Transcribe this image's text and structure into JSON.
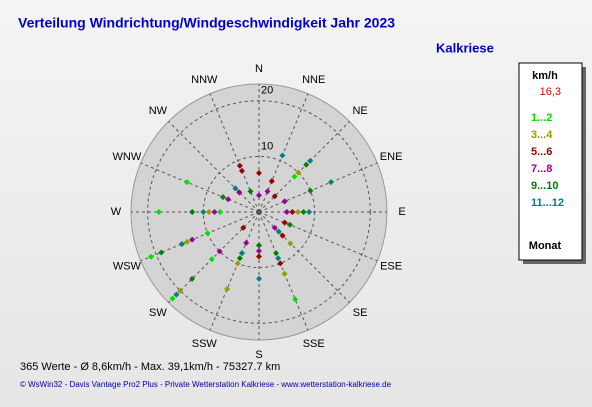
{
  "chart_data": {
    "type": "polar-scatter",
    "title": "Verteilung Windrichtung/Windgeschwindigkeit  Jahr 2023",
    "station": "Kalkriese",
    "directions": [
      "N",
      "NNE",
      "NE",
      "ENE",
      "E",
      "ESE",
      "SE",
      "SSE",
      "S",
      "SSW",
      "SW",
      "WSW",
      "W",
      "WNW",
      "NW",
      "NNW"
    ],
    "rlim": [
      0,
      23
    ],
    "rticks": [
      10,
      20
    ],
    "legend_title": "km/h",
    "legend_value": "16,3",
    "legend_footer": "Monat",
    "series": [
      {
        "name": "1...2",
        "color": "#00e000",
        "angles": [
          247.5,
          247.5,
          247.5,
          225,
          225,
          292.5,
          270,
          202.5,
          157.5,
          270,
          45,
          67.5
        ],
        "values": [
          21,
          15,
          10,
          22,
          12,
          14,
          18,
          8,
          17,
          7,
          9,
          5
        ]
      },
      {
        "name": "3...4",
        "color": "#999900",
        "angles": [
          202.5,
          202.5,
          157.5,
          135,
          112.5,
          270,
          247.5,
          225,
          22.5,
          45,
          180,
          90
        ],
        "values": [
          15,
          10,
          12,
          8,
          5,
          9,
          14,
          20,
          6,
          10,
          6,
          7
        ]
      },
      {
        "name": "5...6",
        "color": "#990000",
        "angles": [
          337.5,
          337.5,
          315,
          0,
          22.5,
          45,
          135,
          157.5,
          180,
          112.5,
          90,
          225
        ],
        "values": [
          9,
          8,
          5,
          7,
          6,
          4,
          6,
          10,
          8,
          5,
          6,
          4
        ]
      },
      {
        "name": "7...8",
        "color": "#990099",
        "angles": [
          247.5,
          225,
          270,
          292.5,
          315,
          180,
          202.5,
          135,
          90,
          67.5,
          22.5,
          0
        ],
        "values": [
          13,
          10,
          8,
          6,
          5,
          7,
          6,
          4,
          5,
          5,
          4,
          3
        ]
      },
      {
        "name": "9...10",
        "color": "#008000",
        "angles": [
          247.5,
          225,
          45,
          67.5,
          157.5,
          180,
          202.5,
          112.5,
          90,
          270,
          292.5,
          337.5
        ],
        "values": [
          19,
          17,
          12,
          10,
          8,
          6,
          9,
          6,
          8,
          12,
          7,
          4
        ]
      },
      {
        "name": "11...12",
        "color": "#008080",
        "angles": [
          225,
          247.5,
          45,
          22.5,
          67.5,
          90,
          180,
          157.5,
          135,
          270,
          202.5,
          315
        ],
        "values": [
          21,
          15,
          13,
          11,
          14,
          9,
          12,
          9,
          5,
          10,
          8,
          6
        ]
      }
    ],
    "summary": "365 Werte   -   Ø 8,6km/h  -  Max. 39,1km/h   -   75327.7 km",
    "credit": "© WsWin32  -  Davis Vantage Pro2 Plus  -  Private Wetterstation Kalkriese - www.wetterstation-kalkriese.de"
  }
}
